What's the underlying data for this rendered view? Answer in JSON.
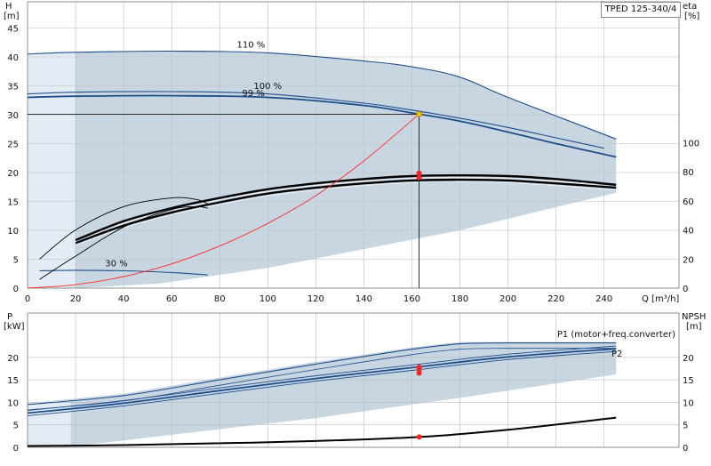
{
  "model": "TPED 125-340/4",
  "colors": {
    "envelope": "#c8d6e2",
    "envelope_light": "#e3ecf5",
    "curve": "#1f4e8c",
    "system": "#ff2a2a",
    "op_point": "#ff2020",
    "op_marker": "#f2c200",
    "eff": "#000000",
    "grid": "#bdbdbd"
  },
  "chart_data": [
    {
      "type": "line",
      "title": "",
      "xlabel": "Q [m³/h]",
      "ylabel": "H [m]",
      "y2label": "eta [%]",
      "ylabel_lines": [
        "H",
        "[m]"
      ],
      "y2label_lines": [
        "eta",
        "[%]"
      ],
      "xlim": [
        0,
        250
      ],
      "ylim": [
        0,
        45
      ],
      "y2lim_visible": [
        0,
        100
      ],
      "x_ticks": [
        20,
        40,
        60,
        80,
        100,
        120,
        140,
        160,
        180,
        200,
        220,
        240
      ],
      "y_ticks": [
        0,
        5,
        10,
        15,
        20,
        25,
        30,
        35,
        40,
        45
      ],
      "y2_ticks": [
        0,
        20,
        40,
        60,
        80,
        100
      ],
      "grid": true,
      "duty_point": {
        "Q": 163,
        "H": 30.1
      },
      "series": [
        {
          "name": "110 %",
          "x": [
            0,
            20,
            60,
            100,
            140,
            160,
            180,
            200,
            245
          ],
          "y": [
            40.5,
            40.8,
            41.0,
            40.7,
            39.3,
            38.3,
            36.5,
            33.0,
            25.8
          ]
        },
        {
          "name": "100 %",
          "x": [
            0,
            20,
            60,
            100,
            140,
            160,
            180,
            200,
            220,
            240
          ],
          "y": [
            33.6,
            33.9,
            34.0,
            33.6,
            32.0,
            30.8,
            29.4,
            27.8,
            26.0,
            24.2
          ]
        },
        {
          "name": "99 %",
          "x": [
            0,
            20,
            60,
            100,
            140,
            160,
            180,
            200,
            220,
            245
          ],
          "y": [
            33.0,
            33.2,
            33.3,
            33.0,
            31.6,
            30.3,
            28.9,
            27.0,
            25.0,
            22.7
          ]
        },
        {
          "name": "30 %",
          "x": [
            5,
            20,
            40,
            60,
            75
          ],
          "y": [
            3.0,
            3.1,
            3.0,
            2.7,
            2.3
          ]
        },
        {
          "name": "system",
          "x": [
            0,
            20,
            40,
            60,
            80,
            100,
            120,
            140,
            163
          ],
          "y": [
            0,
            0.6,
            2.0,
            4.2,
            7.3,
            11.2,
            16.0,
            22.0,
            30.1
          ]
        },
        {
          "name": "eta",
          "x": [
            20,
            40,
            60,
            80,
            100,
            120,
            140,
            160,
            180,
            200,
            220,
            245
          ],
          "y": [
            33,
            46,
            55,
            62,
            68,
            72,
            75,
            77,
            77.5,
            77,
            75,
            71
          ]
        },
        {
          "name": "eta",
          "x": [
            20,
            40,
            60,
            80,
            100,
            120,
            140,
            160,
            180,
            200,
            220,
            245
          ],
          "y": [
            31,
            43,
            52,
            59,
            65,
            69,
            72,
            74,
            74.5,
            74,
            72,
            69
          ]
        },
        {
          "name": "eta",
          "x": [
            5,
            20,
            40,
            60,
            70,
            75
          ],
          "y": [
            20,
            40,
            56,
            62,
            61,
            58
          ]
        },
        {
          "name": "eta",
          "x": [
            5,
            20,
            40,
            60,
            70,
            75
          ],
          "y": [
            6,
            22,
            42,
            54,
            56,
            55
          ]
        }
      ],
      "labels": {
        "s110": "110 %",
        "s100": "100 %",
        "s99": "99 %",
        "s30": "30 %"
      }
    },
    {
      "type": "line",
      "title": "",
      "xlabel": "",
      "ylabel": "P [kW]",
      "y2label": "NPSH [m]",
      "ylabel_lines": [
        "P",
        "[kW]"
      ],
      "y2label_lines": [
        "NPSH",
        "[m]"
      ],
      "xlim": [
        0,
        250
      ],
      "ylim": [
        0,
        24
      ],
      "y_ticks": [
        0,
        5,
        10,
        15,
        20
      ],
      "y2_ticks": [
        0,
        5,
        10,
        15,
        20
      ],
      "grid": true,
      "series_labels": {
        "p1": "P1 (motor+freq.converter)",
        "p2": "P2"
      },
      "series": [
        {
          "name": "P1 (motor+freq.converter)",
          "x": [
            0,
            40,
            80,
            120,
            160,
            180,
            200,
            245
          ],
          "y": [
            9.5,
            11.5,
            15.0,
            18.5,
            21.8,
            23.0,
            23.2,
            23.2
          ]
        },
        {
          "name": "P2",
          "x": [
            0,
            40,
            80,
            120,
            160,
            200,
            245
          ],
          "y": [
            7.0,
            9.2,
            12.0,
            14.7,
            17.1,
            19.5,
            21.3
          ]
        },
        {
          "name": "NPSH",
          "x": [
            0,
            40,
            80,
            120,
            163,
            200,
            245
          ],
          "y": [
            0.3,
            0.5,
            0.9,
            1.4,
            2.3,
            3.9,
            6.6
          ]
        }
      ],
      "op_points": [
        {
          "x": 163,
          "y": 17.3
        },
        {
          "x": 163,
          "y": 16.5
        },
        {
          "x": 163,
          "y": 2.3
        }
      ]
    }
  ]
}
